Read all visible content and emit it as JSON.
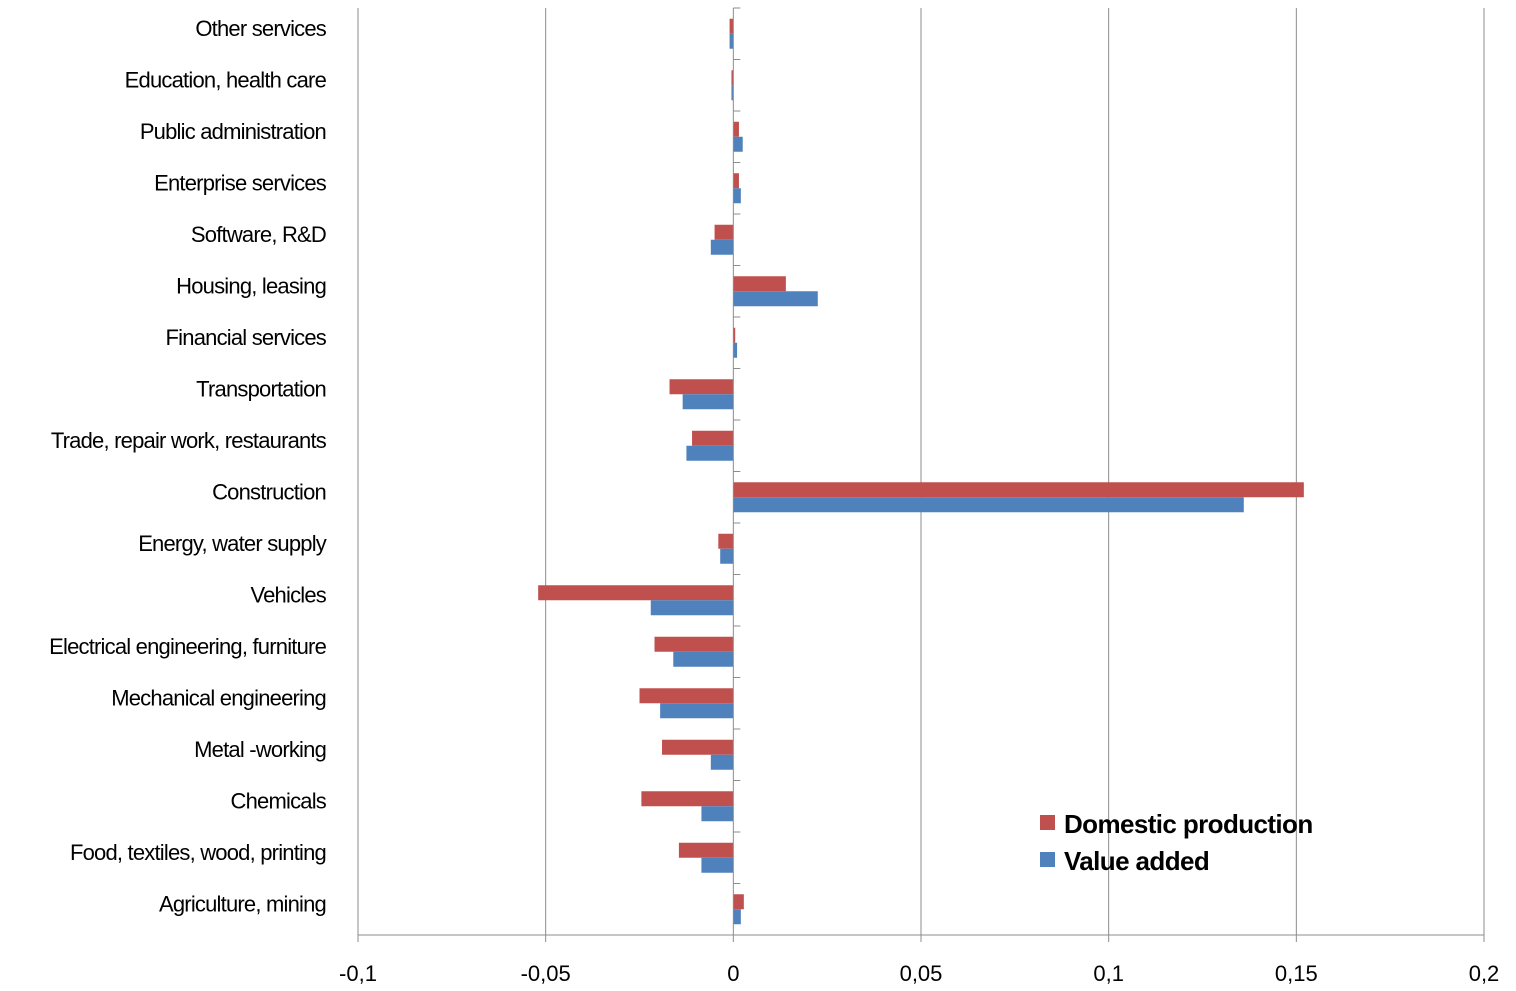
{
  "chart_data": {
    "type": "bar",
    "orientation": "horizontal",
    "title": "",
    "xlabel": "",
    "ylabel": "",
    "xlim": [
      -0.1,
      0.2
    ],
    "x_ticks": [
      -0.1,
      -0.05,
      0,
      0.05,
      0.1,
      0.15,
      0.2
    ],
    "x_tick_labels": [
      "-0,1",
      "-0,05",
      "0",
      "0,05",
      "0,1",
      "0,15",
      "0,2"
    ],
    "grid": "vertical",
    "legend_position": "bottom-right",
    "categories": [
      "Other services",
      "Education, health care",
      "Public administration",
      "Enterprise services",
      "Software, R&D",
      "Housing, leasing",
      "Financial services",
      "Transportation",
      "Trade, repair work, restaurants",
      "Construction",
      "Energy, water supply",
      "Vehicles",
      "Electrical engineering, furniture",
      "Mechanical engineering",
      "Metal -working",
      "Chemicals",
      "Food, textiles, wood, printing",
      "Agriculture, mining"
    ],
    "series": [
      {
        "name": "Domestic production",
        "color": "#C0504D",
        "values": [
          -0.001,
          -0.0005,
          0.0015,
          0.0015,
          -0.005,
          0.014,
          0.0005,
          -0.017,
          -0.011,
          0.152,
          -0.004,
          -0.052,
          -0.021,
          -0.025,
          -0.019,
          -0.0245,
          -0.0145,
          0.0028
        ]
      },
      {
        "name": "Value added",
        "color": "#4F81BD",
        "values": [
          -0.001,
          -0.0005,
          0.0025,
          0.002,
          -0.006,
          0.0225,
          0.001,
          -0.0135,
          -0.0125,
          0.136,
          -0.0035,
          -0.022,
          -0.016,
          -0.0195,
          -0.006,
          -0.0085,
          -0.0085,
          0.002
        ]
      }
    ]
  }
}
